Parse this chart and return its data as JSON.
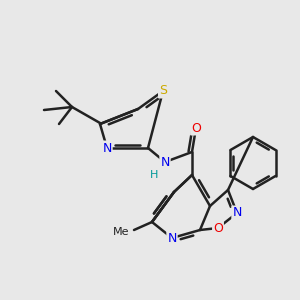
{
  "bg_color": "#e8e8e8",
  "bond_color": "#222222",
  "bond_width": 1.8,
  "atom_colors": {
    "N": "#0000ee",
    "O": "#ee0000",
    "S": "#ccaa00",
    "C": "#222222",
    "H": "#009999"
  }
}
